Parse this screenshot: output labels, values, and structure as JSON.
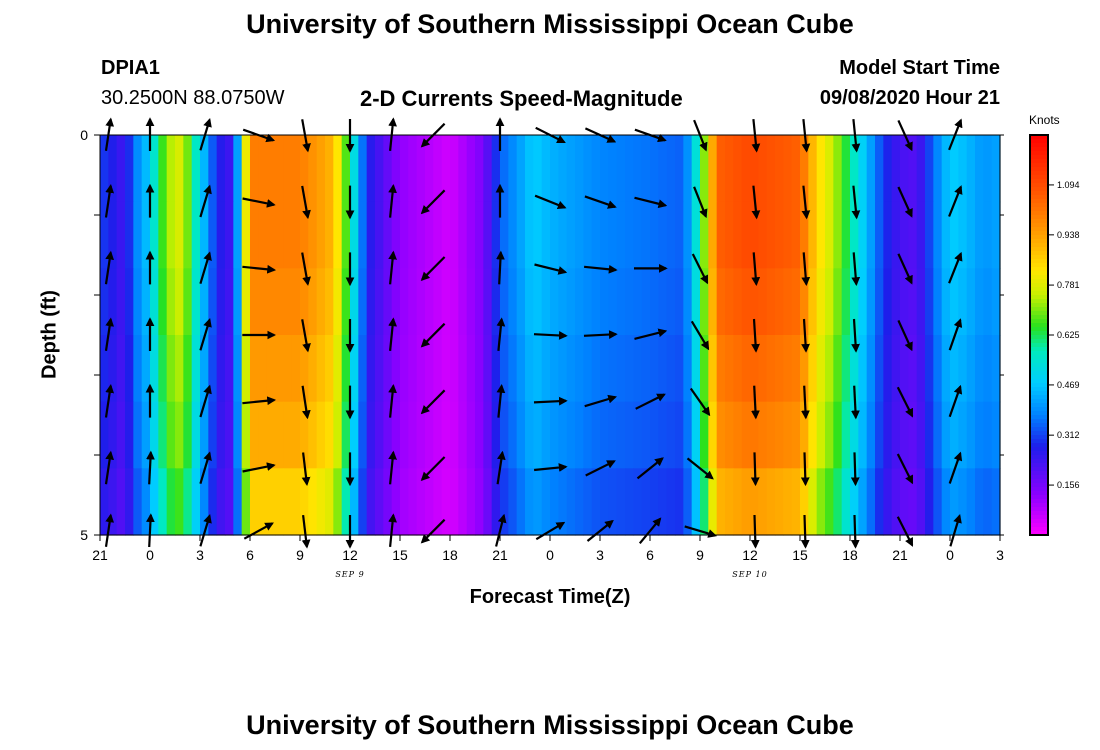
{
  "header": {
    "title": "University of Southern Mississippi Ocean Cube",
    "footer_title": "University of Southern Mississippi Ocean Cube",
    "station_id": "DPIA1",
    "coordinates": "30.2500N 88.0750W",
    "model_start_label": "Model Start Time",
    "model_start_value": "09/08/2020 Hour 21"
  },
  "chart_data": {
    "type": "heatmap",
    "title": "2-D Currents Speed-Magnitude",
    "xlabel": "Forecast Time(Z)",
    "ylabel": "Depth (ft)",
    "x_tick_labels": [
      "21",
      "0",
      "3",
      "6",
      "9",
      "12",
      "15",
      "18",
      "21",
      "0",
      "3",
      "6",
      "9",
      "12",
      "15",
      "18",
      "21",
      "0",
      "3"
    ],
    "x_hours": [
      0,
      3,
      6,
      9,
      12,
      15,
      18,
      21,
      24,
      27,
      30,
      33,
      36,
      39,
      42,
      45,
      48,
      51,
      54
    ],
    "date_labels": [
      {
        "text": "SEP 9",
        "hour": 15
      },
      {
        "text": "SEP 10",
        "hour": 39
      }
    ],
    "y_tick_labels": [
      "0",
      "5"
    ],
    "ylim": [
      0,
      5
    ],
    "colorbar": {
      "label": "Knots",
      "ticks": [
        "1.094",
        "0.938",
        "0.781",
        "0.625",
        "0.469",
        "0.312",
        "0.156"
      ],
      "tick_values": [
        1.094,
        0.938,
        0.781,
        0.625,
        0.469,
        0.312,
        0.156
      ],
      "range": [
        0.0,
        1.25
      ]
    },
    "speed_profile": {
      "hours": [
        0,
        1,
        1.5,
        2,
        3,
        3.5,
        4.5,
        5,
        6,
        7,
        8,
        9,
        12,
        14,
        15,
        16,
        18,
        21,
        23,
        24,
        25,
        26,
        27,
        30,
        33,
        35,
        35.5,
        36,
        36.5,
        37,
        39,
        42,
        43,
        44,
        45,
        47,
        48,
        49,
        50,
        51,
        52,
        53,
        54
      ],
      "knots": [
        0.31,
        0.26,
        0.22,
        0.36,
        0.48,
        0.62,
        0.78,
        0.76,
        0.5,
        0.28,
        0.22,
        1.0,
        1.0,
        0.9,
        0.6,
        0.28,
        0.12,
        0.05,
        0.15,
        0.34,
        0.4,
        0.48,
        0.44,
        0.38,
        0.36,
        0.34,
        0.45,
        0.62,
        0.8,
        1.05,
        1.1,
        1.05,
        0.85,
        0.75,
        0.6,
        0.3,
        0.22,
        0.2,
        0.35,
        0.48,
        0.45,
        0.4,
        0.42
      ]
    },
    "depth_offsets": [
      0.0,
      0.0,
      -0.02,
      -0.05,
      -0.08,
      -0.14
    ],
    "vector_rows_ft": [
      0,
      0.833,
      1.667,
      2.5,
      3.333,
      4.167,
      4.95
    ],
    "vectors": [
      {
        "hour": 0.5,
        "u": [
          0.15,
          0.15,
          0.15,
          0.15,
          0.15,
          0.15,
          0.15
        ],
        "v": [
          1,
          1,
          1,
          1,
          1,
          1,
          1
        ]
      },
      {
        "hour": 3,
        "u": [
          0,
          0,
          0,
          0,
          0,
          0.05,
          0.05
        ],
        "v": [
          1,
          1,
          1,
          1,
          1,
          1,
          1
        ]
      },
      {
        "hour": 6.3,
        "u": [
          0.3,
          0.3,
          0.3,
          0.3,
          0.3,
          0.3,
          0.3
        ],
        "v": [
          1,
          1,
          1,
          1,
          1,
          1,
          1
        ]
      },
      {
        "hour": 9.5,
        "u": [
          1,
          1,
          1,
          1,
          1,
          1,
          1
        ],
        "v": [
          -0.35,
          -0.2,
          -0.1,
          0,
          0.1,
          0.2,
          0.55
        ]
      },
      {
        "hour": 12.3,
        "u": [
          0.18,
          0.18,
          0.18,
          0.18,
          0.15,
          0.12,
          0.12
        ],
        "v": [
          -1,
          -1,
          -1,
          -1,
          -1,
          -1,
          -1
        ]
      },
      {
        "hour": 15,
        "u": [
          0,
          0,
          0,
          0,
          0,
          0,
          0
        ],
        "v": [
          -1,
          -1,
          -1,
          -1,
          -1,
          -1,
          -1
        ]
      },
      {
        "hour": 17.5,
        "u": [
          0.1,
          0.1,
          0.1,
          0.1,
          0.1,
          0.1,
          0.1
        ],
        "v": [
          1,
          1,
          1,
          1,
          1,
          1,
          1
        ]
      },
      {
        "hour": 20,
        "u": [
          -0.8,
          -0.8,
          -0.8,
          -0.8,
          -0.8,
          -0.8,
          -0.8
        ],
        "v": [
          -0.8,
          -0.8,
          -0.8,
          -0.8,
          -0.8,
          -0.8,
          -0.8
        ]
      },
      {
        "hour": 24,
        "u": [
          0,
          0,
          0.05,
          0.1,
          0.1,
          0.15,
          0.25
        ],
        "v": [
          1,
          1,
          1,
          1,
          1,
          1,
          1
        ]
      },
      {
        "hour": 27,
        "u": [
          1,
          1,
          1,
          1,
          1,
          1,
          1
        ],
        "v": [
          -0.5,
          -0.4,
          -0.25,
          -0.05,
          0.05,
          0.1,
          0.6
        ]
      },
      {
        "hour": 30,
        "u": [
          1,
          1,
          1,
          1,
          1,
          1,
          1
        ],
        "v": [
          -0.45,
          -0.35,
          -0.1,
          0.05,
          0.3,
          0.5,
          0.8
        ]
      },
      {
        "hour": 33,
        "u": [
          1,
          1,
          1,
          1,
          1,
          1,
          1
        ],
        "v": [
          -0.35,
          -0.25,
          0,
          0.25,
          0.5,
          0.8,
          1.2
        ]
      },
      {
        "hour": 36,
        "u": [
          0.4,
          0.4,
          0.5,
          0.6,
          0.7,
          1,
          1
        ],
        "v": [
          -1,
          -1,
          -1,
          -1,
          -1,
          -0.8,
          -0.3
        ]
      },
      {
        "hour": 39.3,
        "u": [
          0.1,
          0.1,
          0.08,
          0.06,
          0.05,
          0.03,
          0.03
        ],
        "v": [
          -1,
          -1,
          -1,
          -1,
          -1,
          -1,
          -1
        ]
      },
      {
        "hour": 42.3,
        "u": [
          0.1,
          0.1,
          0.08,
          0.06,
          0.05,
          0.03,
          0.03
        ],
        "v": [
          -1,
          -1,
          -1,
          -1,
          -1,
          -1,
          -1
        ]
      },
      {
        "hour": 45.3,
        "u": [
          0.1,
          0.1,
          0.08,
          0.06,
          0.05,
          0.03,
          0.03
        ],
        "v": [
          -1,
          -1,
          -1,
          -1,
          -1,
          -1,
          -1
        ]
      },
      {
        "hour": 48.3,
        "u": [
          0.45,
          0.45,
          0.45,
          0.45,
          0.5,
          0.5,
          0.5
        ],
        "v": [
          -1,
          -1,
          -1,
          -1,
          -1,
          -1,
          -1
        ]
      },
      {
        "hour": 51.3,
        "u": [
          0.4,
          0.4,
          0.4,
          0.35,
          0.35,
          0.35,
          0.3
        ],
        "v": [
          1,
          1,
          1,
          1,
          1,
          1,
          1
        ]
      }
    ]
  }
}
